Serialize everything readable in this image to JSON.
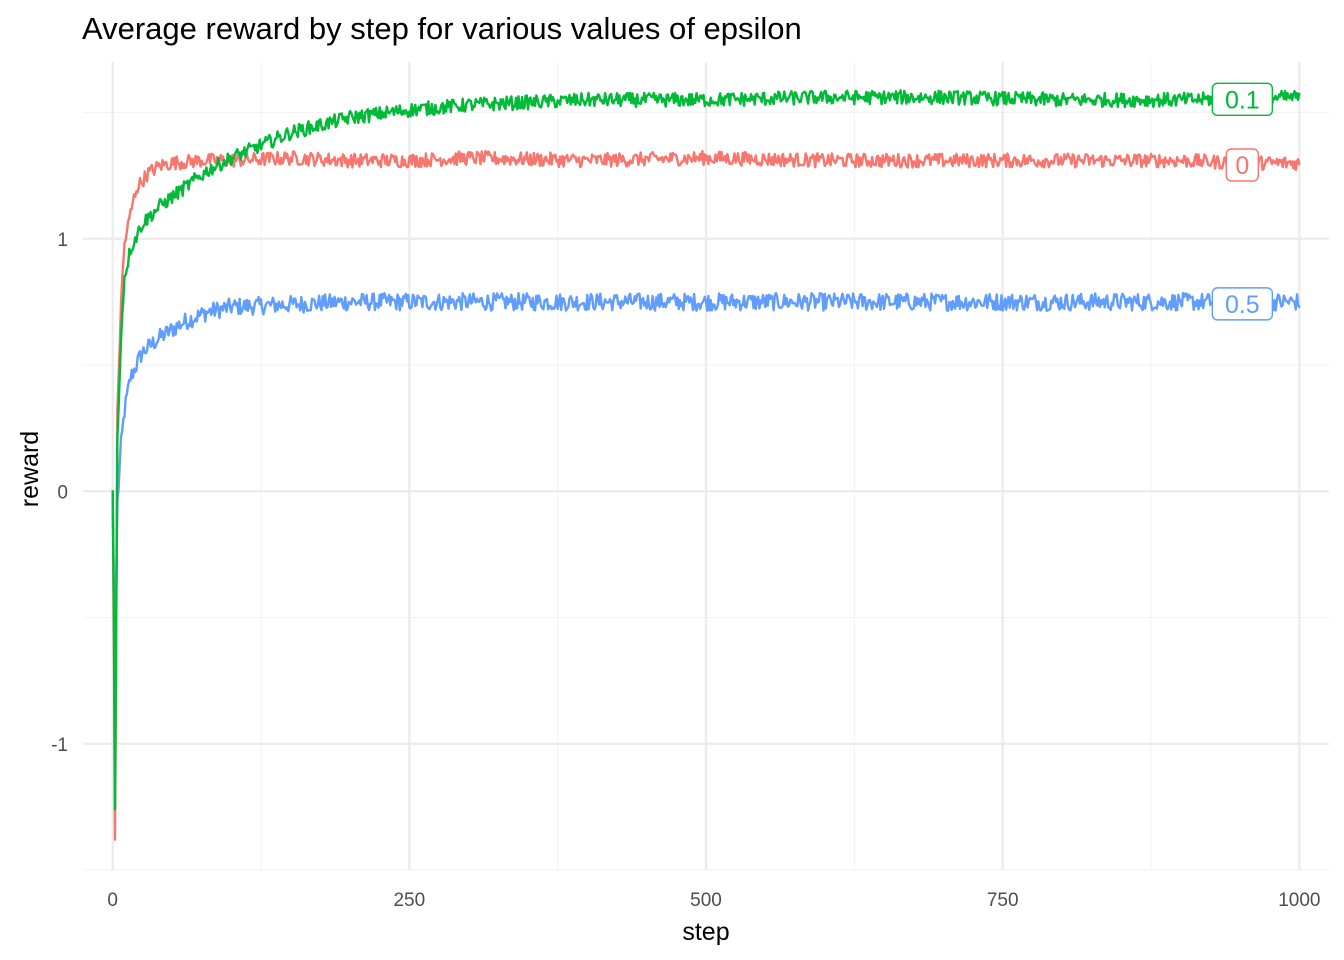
{
  "chart_data": {
    "type": "line",
    "title": "Average reward by step for various values of epsilon",
    "xlabel": "step",
    "ylabel": "reward",
    "xlim": [
      -25,
      1025
    ],
    "ylim": [
      -1.5,
      1.7
    ],
    "x_ticks": [
      0,
      250,
      500,
      750,
      1000
    ],
    "x_tick_labels": [
      "0",
      "250",
      "500",
      "750",
      "1000"
    ],
    "y_ticks": [
      -1,
      0,
      1
    ],
    "y_tick_labels": [
      "-1",
      "0",
      "1"
    ],
    "grid": true,
    "legend": "direct-labels-at-line-ends",
    "series": [
      {
        "name": "0",
        "color": "#F8766D",
        "points": [
          [
            0,
            0
          ],
          [
            1,
            -0.6
          ],
          [
            2,
            -1.38
          ],
          [
            4,
            0.3
          ],
          [
            7,
            0.75
          ],
          [
            10,
            0.98
          ],
          [
            15,
            1.1
          ],
          [
            20,
            1.2
          ],
          [
            30,
            1.26
          ],
          [
            40,
            1.29
          ],
          [
            50,
            1.3
          ],
          [
            75,
            1.31
          ],
          [
            100,
            1.31
          ],
          [
            150,
            1.32
          ],
          [
            200,
            1.31
          ],
          [
            250,
            1.31
          ],
          [
            300,
            1.32
          ],
          [
            400,
            1.31
          ],
          [
            500,
            1.32
          ],
          [
            600,
            1.31
          ],
          [
            700,
            1.31
          ],
          [
            800,
            1.31
          ],
          [
            900,
            1.31
          ],
          [
            950,
            1.3
          ],
          [
            1000,
            1.3
          ]
        ],
        "noise": 0.028,
        "label": "0"
      },
      {
        "name": "0.1",
        "color": "#00BA38",
        "points": [
          [
            0,
            0
          ],
          [
            1,
            -0.5
          ],
          [
            2,
            -1.26
          ],
          [
            4,
            0.2
          ],
          [
            7,
            0.62
          ],
          [
            10,
            0.85
          ],
          [
            15,
            0.96
          ],
          [
            25,
            1.06
          ],
          [
            40,
            1.13
          ],
          [
            60,
            1.2
          ],
          [
            80,
            1.27
          ],
          [
            100,
            1.32
          ],
          [
            125,
            1.37
          ],
          [
            150,
            1.42
          ],
          [
            175,
            1.45
          ],
          [
            200,
            1.48
          ],
          [
            250,
            1.51
          ],
          [
            300,
            1.53
          ],
          [
            400,
            1.55
          ],
          [
            500,
            1.55
          ],
          [
            600,
            1.56
          ],
          [
            700,
            1.56
          ],
          [
            800,
            1.55
          ],
          [
            900,
            1.55
          ],
          [
            1000,
            1.56
          ]
        ],
        "noise": 0.028,
        "label": "0.1"
      },
      {
        "name": "0.5",
        "color": "#619CFF",
        "points": [
          [
            0,
            0
          ],
          [
            1,
            -0.4
          ],
          [
            2,
            -0.75
          ],
          [
            4,
            -0.05
          ],
          [
            7,
            0.18
          ],
          [
            10,
            0.32
          ],
          [
            15,
            0.45
          ],
          [
            25,
            0.55
          ],
          [
            40,
            0.61
          ],
          [
            60,
            0.67
          ],
          [
            80,
            0.71
          ],
          [
            100,
            0.73
          ],
          [
            150,
            0.74
          ],
          [
            200,
            0.75
          ],
          [
            300,
            0.75
          ],
          [
            400,
            0.75
          ],
          [
            500,
            0.75
          ],
          [
            600,
            0.75
          ],
          [
            700,
            0.75
          ],
          [
            800,
            0.75
          ],
          [
            900,
            0.75
          ],
          [
            1000,
            0.75
          ]
        ],
        "noise": 0.035,
        "label": "0.5"
      }
    ]
  }
}
